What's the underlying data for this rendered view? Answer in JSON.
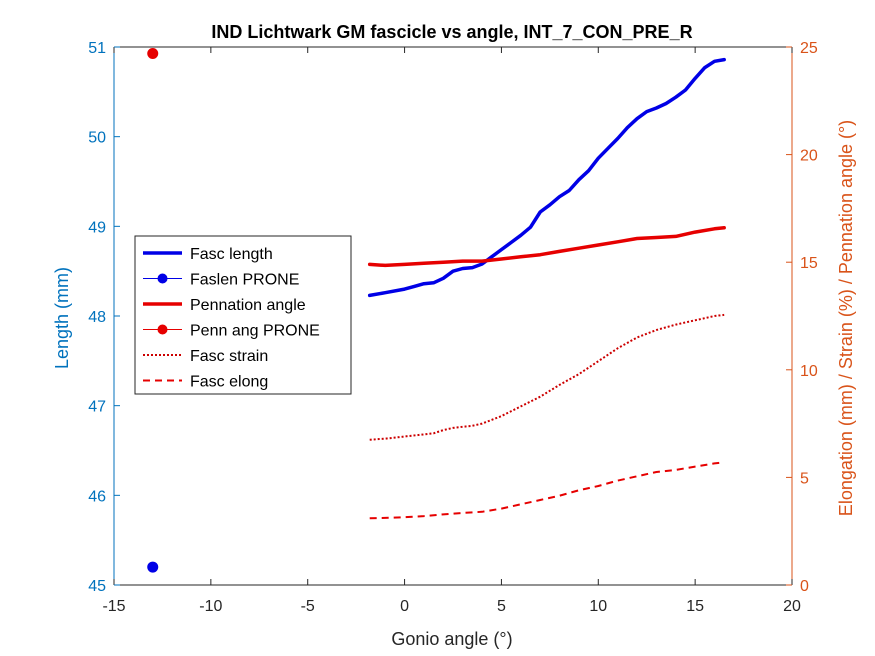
{
  "chart_data": {
    "type": "line",
    "title": "IND Lichtwark GM fascicle vs angle, INT_7_CON_PRE_R",
    "xlabel": "Gonio angle (°)",
    "ylabel_left": "Length (mm)",
    "ylabel_right": "Elongation (mm) / Strain (%) / Pennation angle (°)",
    "xlim": [
      -15,
      20
    ],
    "ylim_left": [
      45,
      51
    ],
    "ylim_right": [
      0,
      25
    ],
    "xticks": [
      "-15",
      "-10",
      "-5",
      "0",
      "5",
      "10",
      "15",
      "20"
    ],
    "yticks_left": [
      "45",
      "46",
      "47",
      "48",
      "49",
      "50",
      "51"
    ],
    "yticks_right": [
      "0",
      "5",
      "10",
      "15",
      "20",
      "25"
    ],
    "grid": false,
    "legend_position": "upper-left",
    "colors": {
      "left_axis": "#0072BD",
      "right_axis": "#D95319",
      "fasc_length": "#0000E6",
      "pennation": "#E60000",
      "strain": "#CC0000",
      "elong": "#E60000"
    },
    "series": [
      {
        "name": "Fasc length",
        "axis": "left",
        "style": "solid-thick",
        "x": [
          -1.8,
          -1,
          0,
          0.5,
          1,
          1.5,
          2,
          2.5,
          3,
          3.5,
          4,
          4.5,
          5,
          5.5,
          6,
          6.5,
          7,
          7.5,
          8,
          8.5,
          9,
          9.5,
          10,
          10.5,
          11,
          11.5,
          12,
          12.5,
          13,
          13.5,
          14,
          14.5,
          15,
          15.5,
          16,
          16.5
        ],
        "y": [
          48.23,
          48.26,
          48.3,
          48.33,
          48.36,
          48.37,
          48.42,
          48.5,
          48.53,
          48.54,
          48.58,
          48.66,
          48.74,
          48.82,
          48.9,
          48.99,
          49.16,
          49.24,
          49.33,
          49.4,
          49.52,
          49.62,
          49.76,
          49.87,
          49.98,
          50.1,
          50.2,
          50.28,
          50.32,
          50.37,
          50.44,
          50.52,
          50.65,
          50.77,
          50.84,
          50.86
        ]
      },
      {
        "name": "Faslen PRONE",
        "axis": "left",
        "style": "marker",
        "x": [
          -13
        ],
        "y": [
          45.2
        ]
      },
      {
        "name": "Pennation angle",
        "axis": "right",
        "style": "solid-thick",
        "x": [
          -1.8,
          -1,
          0,
          1,
          2,
          3,
          4,
          5,
          6,
          7,
          8,
          9,
          10,
          11,
          12,
          13,
          14,
          15,
          16,
          16.5
        ],
        "y": [
          14.9,
          14.85,
          14.9,
          14.95,
          15.0,
          15.05,
          15.05,
          15.15,
          15.25,
          15.35,
          15.5,
          15.65,
          15.8,
          15.95,
          16.1,
          16.15,
          16.2,
          16.4,
          16.55,
          16.6
        ]
      },
      {
        "name": "Penn ang PRONE",
        "axis": "right",
        "style": "marker",
        "x": [
          -13
        ],
        "y": [
          24.7
        ]
      },
      {
        "name": "Fasc strain",
        "axis": "right",
        "style": "dotted",
        "x": [
          -1.8,
          -1,
          0,
          1,
          1.5,
          2,
          2.5,
          3,
          3.5,
          4,
          5,
          6,
          7,
          8,
          9,
          10,
          11,
          12,
          13,
          14,
          15,
          16,
          16.5
        ],
        "y": [
          6.75,
          6.8,
          6.9,
          7.0,
          7.05,
          7.2,
          7.3,
          7.35,
          7.4,
          7.5,
          7.85,
          8.3,
          8.75,
          9.3,
          9.8,
          10.4,
          11.0,
          11.5,
          11.85,
          12.1,
          12.3,
          12.5,
          12.55
        ]
      },
      {
        "name": "Fasc elong",
        "axis": "right",
        "style": "dashed",
        "x": [
          -1.8,
          -1,
          0,
          1,
          2,
          3,
          4,
          5,
          6,
          7,
          8,
          9,
          10,
          11,
          12,
          13,
          14,
          15,
          16,
          16.5
        ],
        "y": [
          3.1,
          3.12,
          3.15,
          3.2,
          3.28,
          3.35,
          3.4,
          3.55,
          3.75,
          3.95,
          4.15,
          4.4,
          4.6,
          4.85,
          5.05,
          5.25,
          5.35,
          5.5,
          5.65,
          5.7
        ]
      }
    ]
  }
}
